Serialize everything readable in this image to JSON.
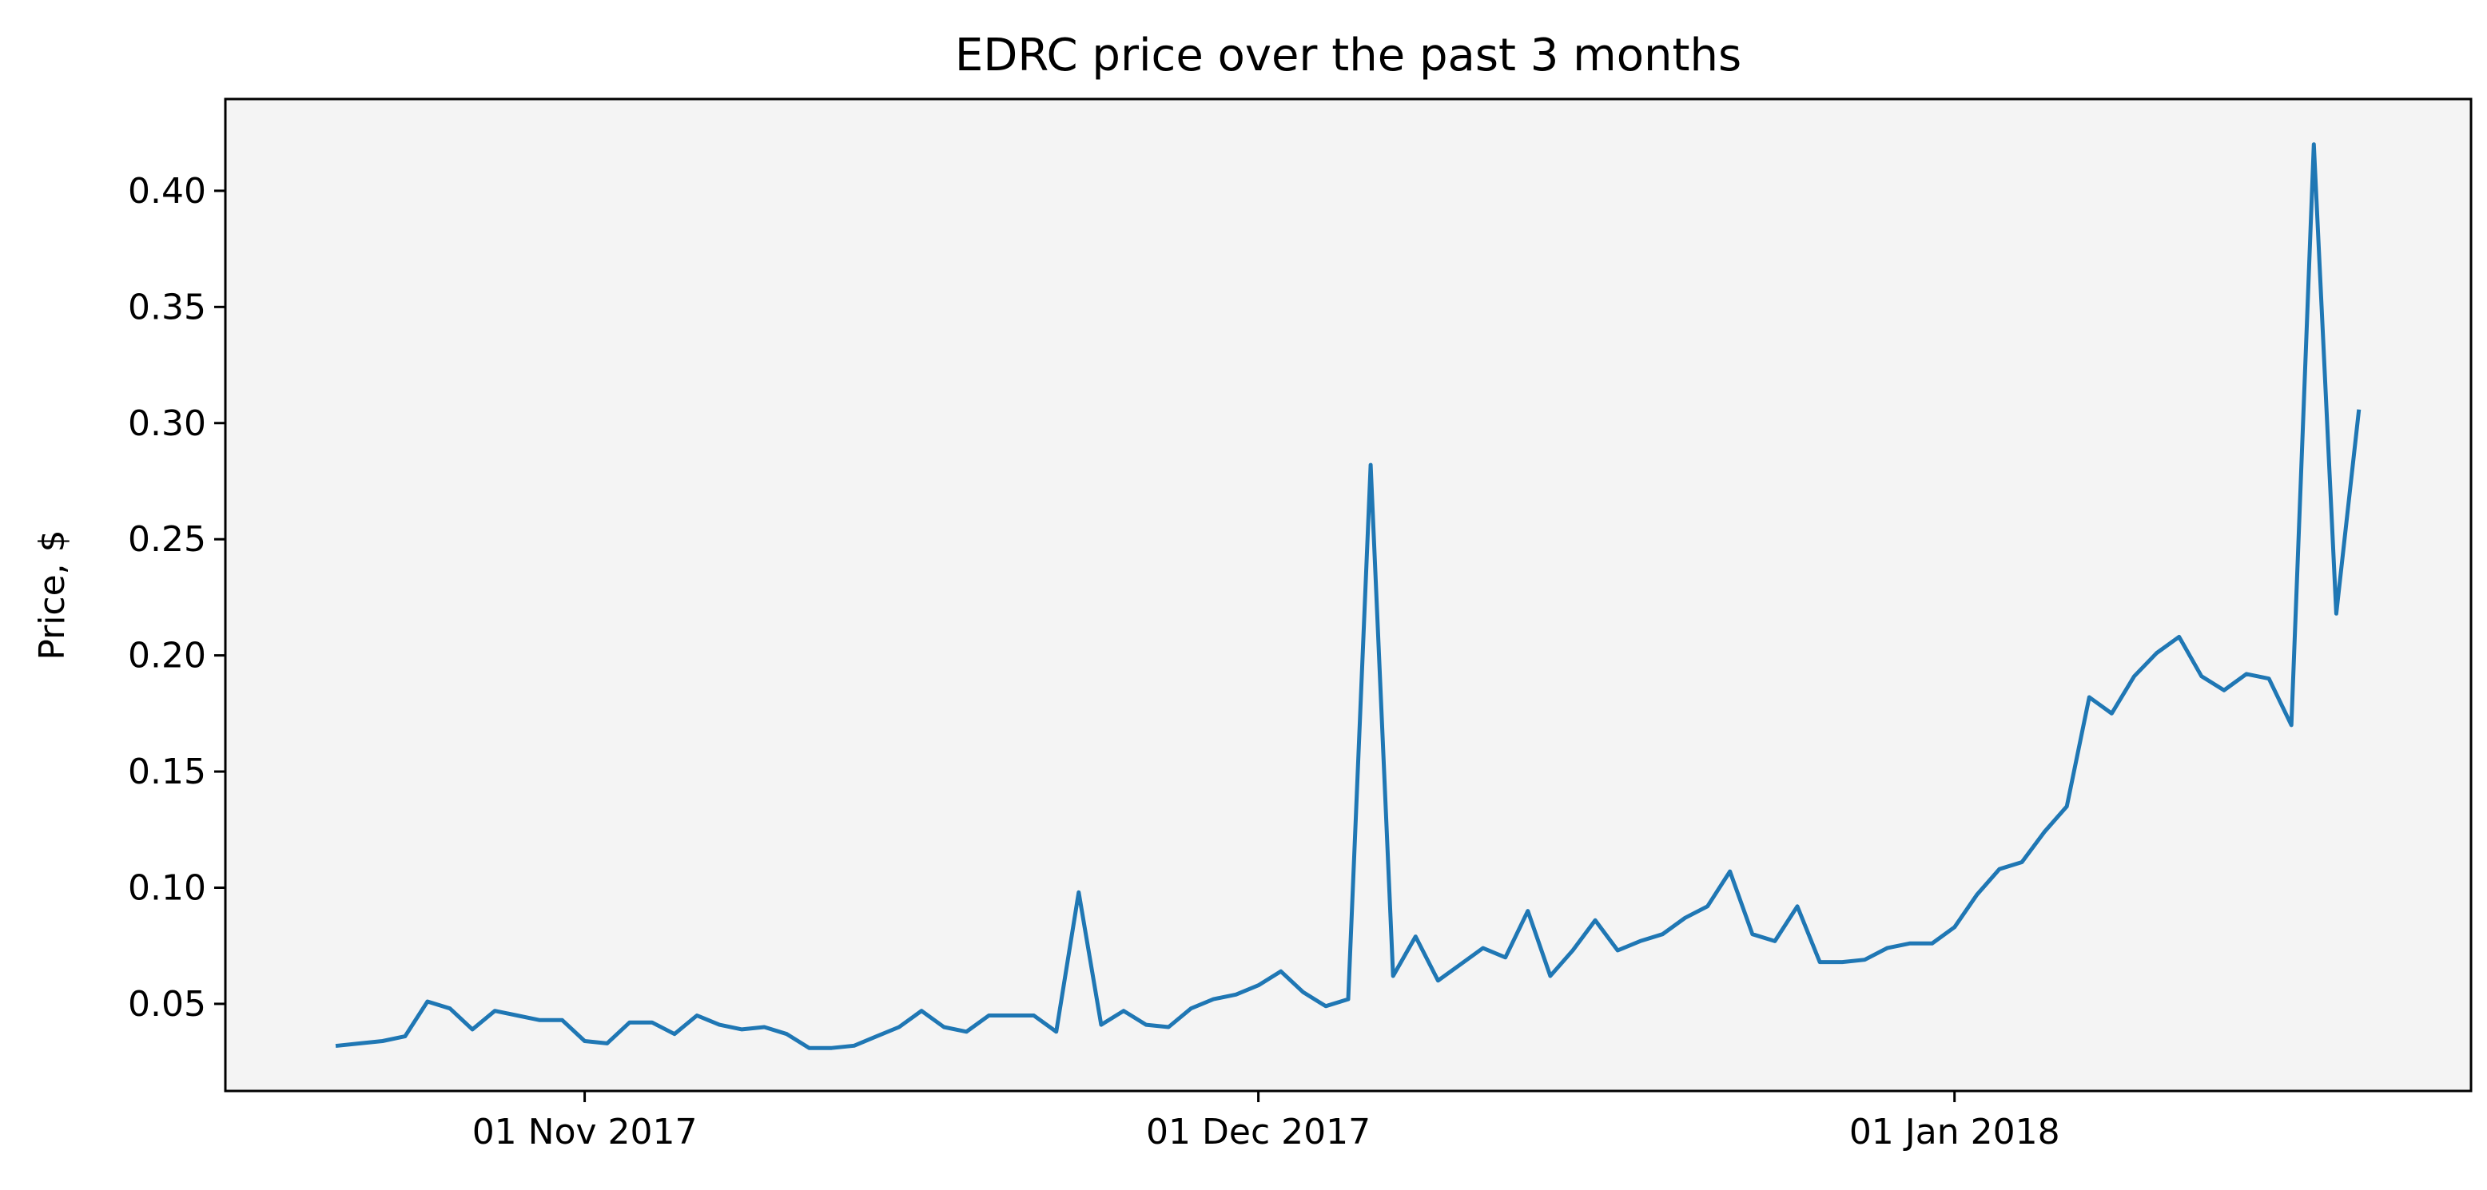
{
  "chart_data": {
    "type": "line",
    "title": "EDRC price over the past 3 months",
    "xlabel": "",
    "ylabel": "Price, $",
    "x_start_date": "2017-10-21",
    "x_ticks": [
      {
        "date": "2017-11-01",
        "label": "01 Nov 2017"
      },
      {
        "date": "2017-12-01",
        "label": "01 Dec 2017"
      },
      {
        "date": "2018-01-01",
        "label": "01 Jan 2018"
      }
    ],
    "y_ticks": [
      0.05,
      0.1,
      0.15,
      0.2,
      0.25,
      0.3,
      0.35,
      0.4
    ],
    "y_tick_labels": [
      "0.05",
      "0.10",
      "0.15",
      "0.20",
      "0.25",
      "0.30",
      "0.35",
      "0.40"
    ],
    "ylim": [
      0.0125,
      0.4395
    ],
    "xlim": [
      "2017-10-16",
      "2018-01-24"
    ],
    "grid": false,
    "background": "#f4f4f4",
    "line_color": "#1f77b4",
    "series": [
      {
        "name": "EDRC",
        "values": [
          0.032,
          0.033,
          0.034,
          0.036,
          0.051,
          0.048,
          0.039,
          0.047,
          0.045,
          0.043,
          0.043,
          0.034,
          0.033,
          0.042,
          0.042,
          0.037,
          0.045,
          0.041,
          0.039,
          0.04,
          0.037,
          0.031,
          0.031,
          0.032,
          0.036,
          0.04,
          0.047,
          0.04,
          0.038,
          0.045,
          0.045,
          0.045,
          0.038,
          0.098,
          0.041,
          0.047,
          0.041,
          0.04,
          0.048,
          0.052,
          0.054,
          0.058,
          0.064,
          0.055,
          0.049,
          0.052,
          0.282,
          0.062,
          0.079,
          0.06,
          0.067,
          0.074,
          0.07,
          0.09,
          0.062,
          0.073,
          0.086,
          0.073,
          0.077,
          0.08,
          0.087,
          0.092,
          0.107,
          0.08,
          0.077,
          0.092,
          0.068,
          0.068,
          0.069,
          0.074,
          0.076,
          0.076,
          0.083,
          0.097,
          0.108,
          0.111,
          0.124,
          0.135,
          0.182,
          0.175,
          0.191,
          0.201,
          0.208,
          0.191,
          0.185,
          0.192,
          0.19,
          0.17,
          0.42,
          0.218,
          0.305
        ]
      }
    ]
  }
}
